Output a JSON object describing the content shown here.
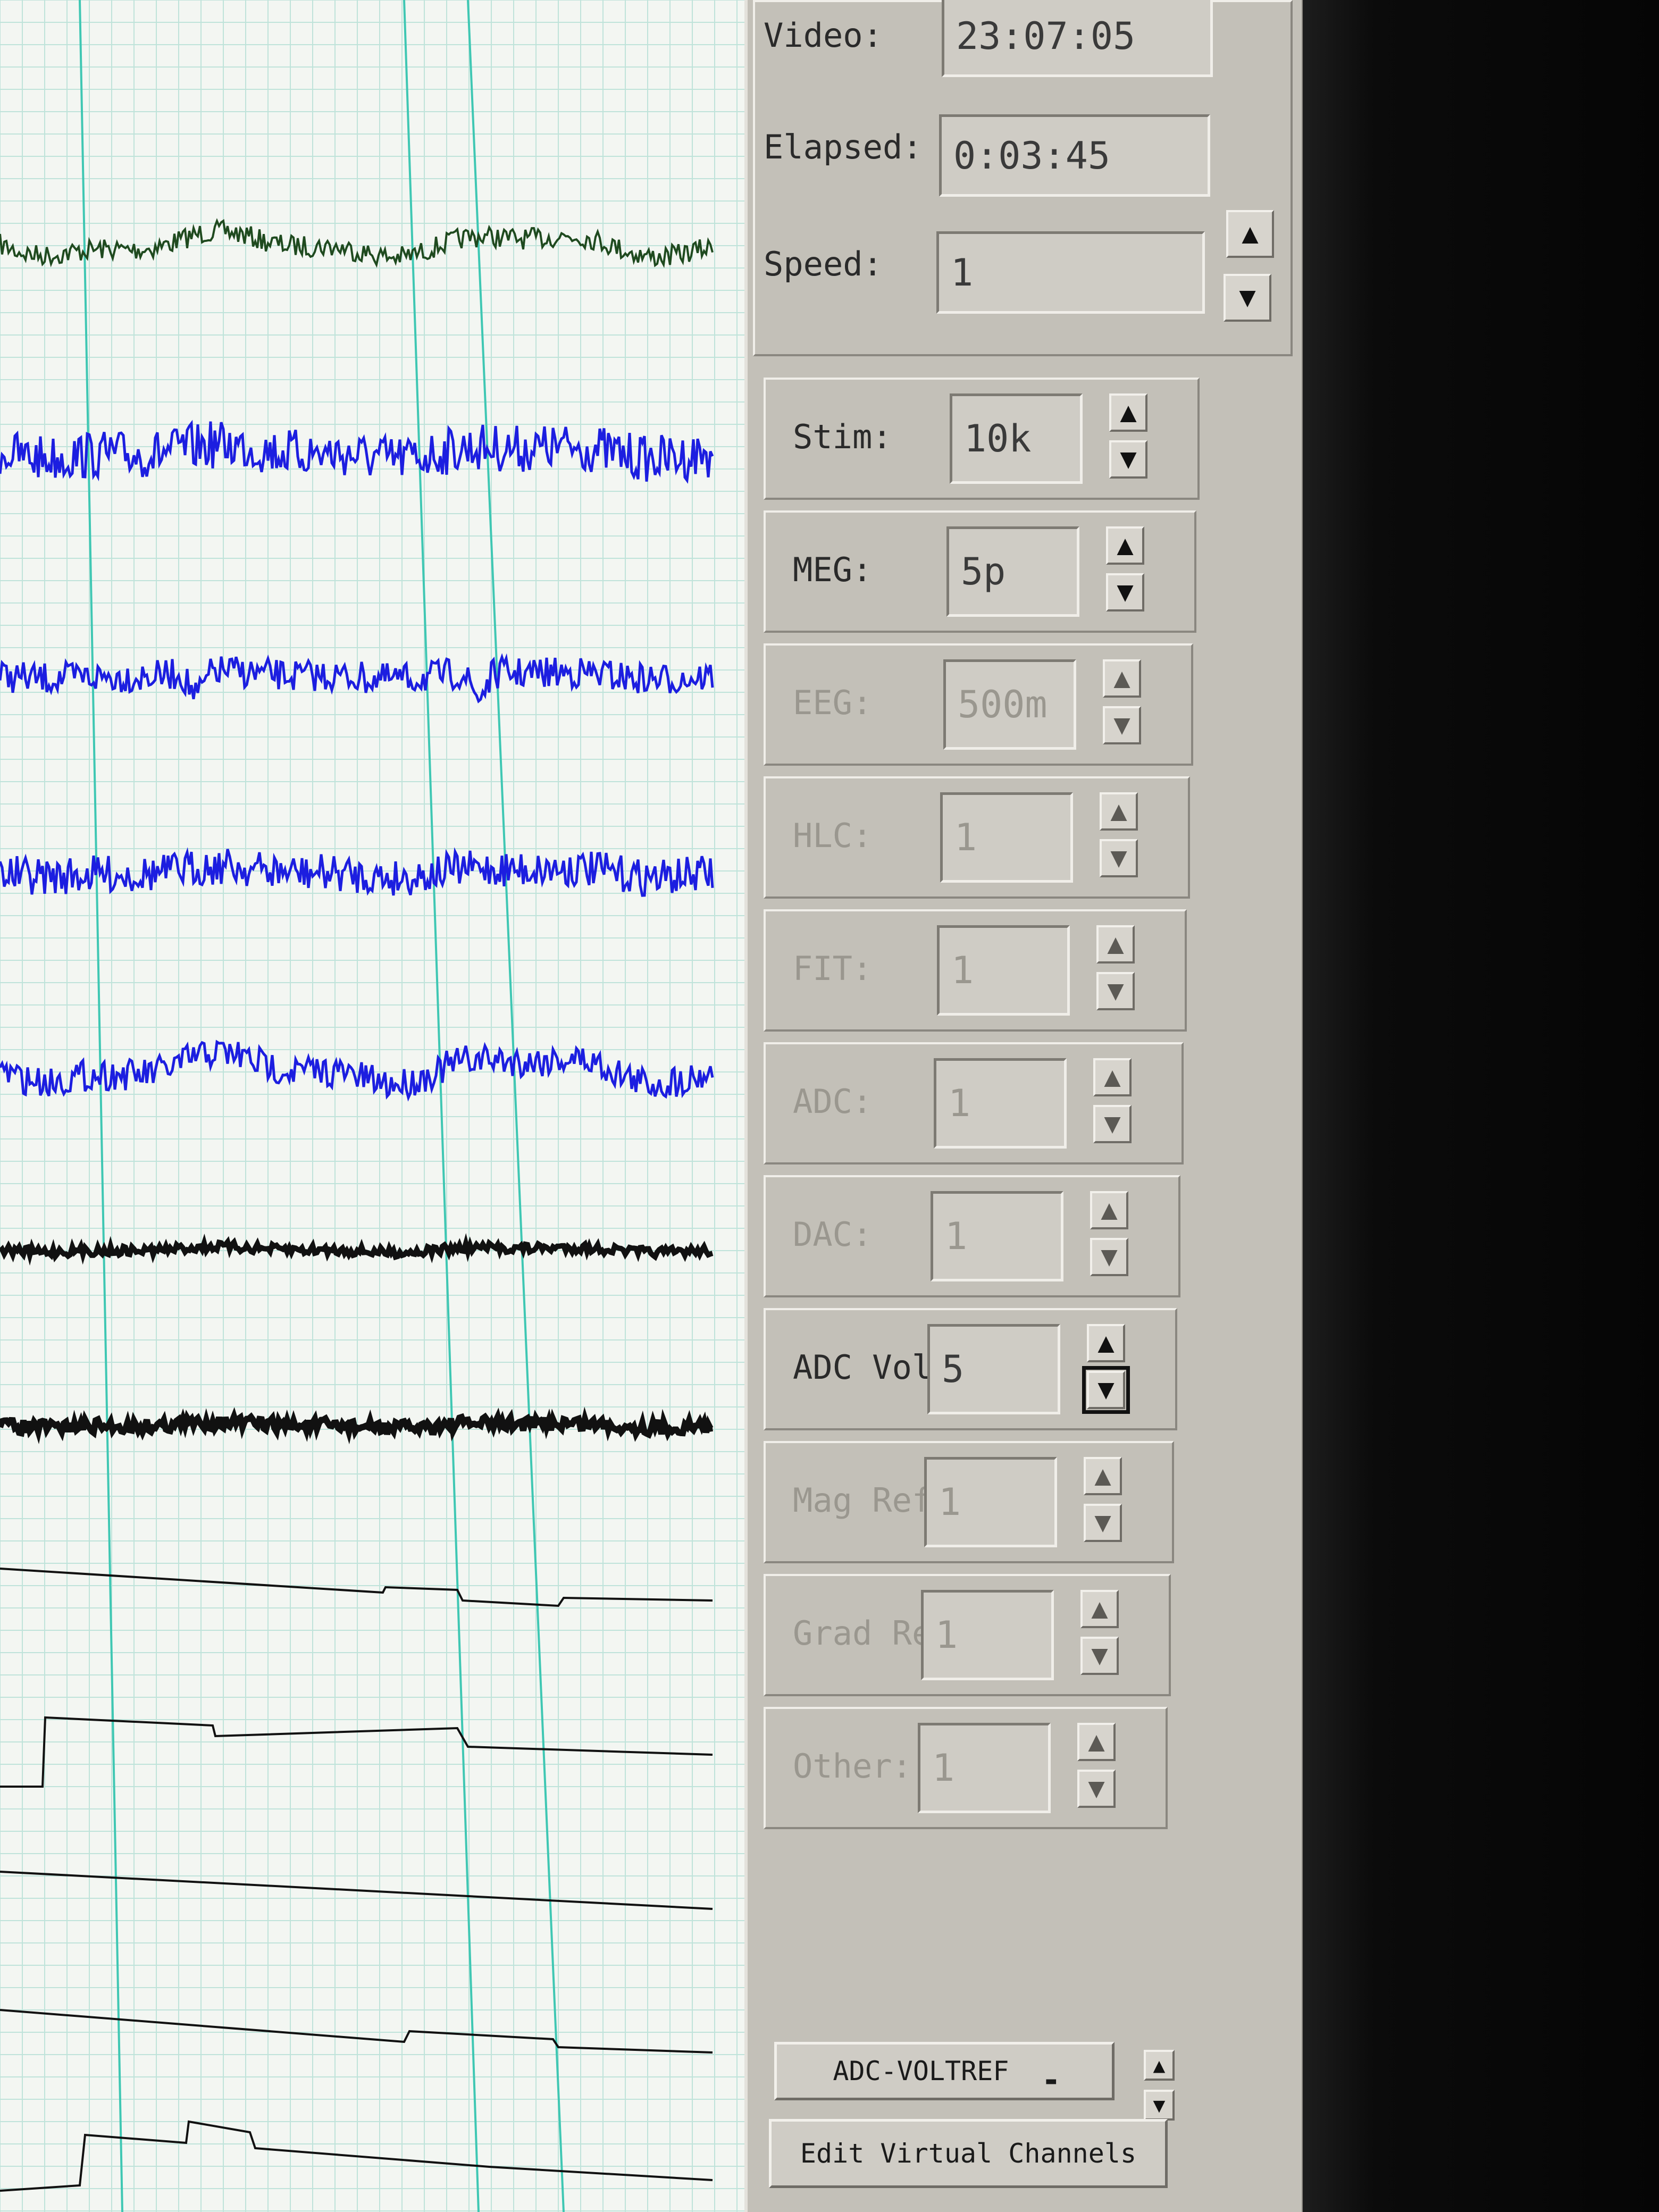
{
  "time_panel": {
    "video_label": "Video:",
    "video_value": "23:07:05",
    "elapsed_label": "Elapsed:",
    "elapsed_value": "0:03:45",
    "speed_label": "Speed:",
    "speed_value": "1"
  },
  "scale_controls": [
    {
      "label": "Stim:",
      "value": "10k",
      "enabled": true
    },
    {
      "label": "MEG:",
      "value": "5p",
      "enabled": true
    },
    {
      "label": "EEG:",
      "value": "500m",
      "enabled": false
    },
    {
      "label": "HLC:",
      "value": "1",
      "enabled": false
    },
    {
      "label": "FIT:",
      "value": "1",
      "enabled": false
    },
    {
      "label": "ADC:",
      "value": "1",
      "enabled": false
    },
    {
      "label": "DAC:",
      "value": "1",
      "enabled": false
    },
    {
      "label": "ADC Vol:",
      "value": "5",
      "enabled": true
    },
    {
      "label": "Mag Ref:",
      "value": "1",
      "enabled": false
    },
    {
      "label": "Grad Ref:",
      "value": "1",
      "enabled": false
    },
    {
      "label": "Other:",
      "value": "1",
      "enabled": false
    }
  ],
  "channel_menu": {
    "selected": "ADC-VOLTREF"
  },
  "edit_virtual_channels_label": "Edit Virtual Channels",
  "icons": {
    "up": "arrow-up-icon",
    "down": "arrow-down-icon",
    "menu": "menu-indicator-icon"
  },
  "colors": {
    "grid_minor": "#bfe3da",
    "grid_major": "#3fc7b3",
    "meg_blue": "#1c1ee0",
    "trace_green": "#1f4a1f",
    "trace_black": "#111111",
    "panel": "#c3c0b8"
  }
}
